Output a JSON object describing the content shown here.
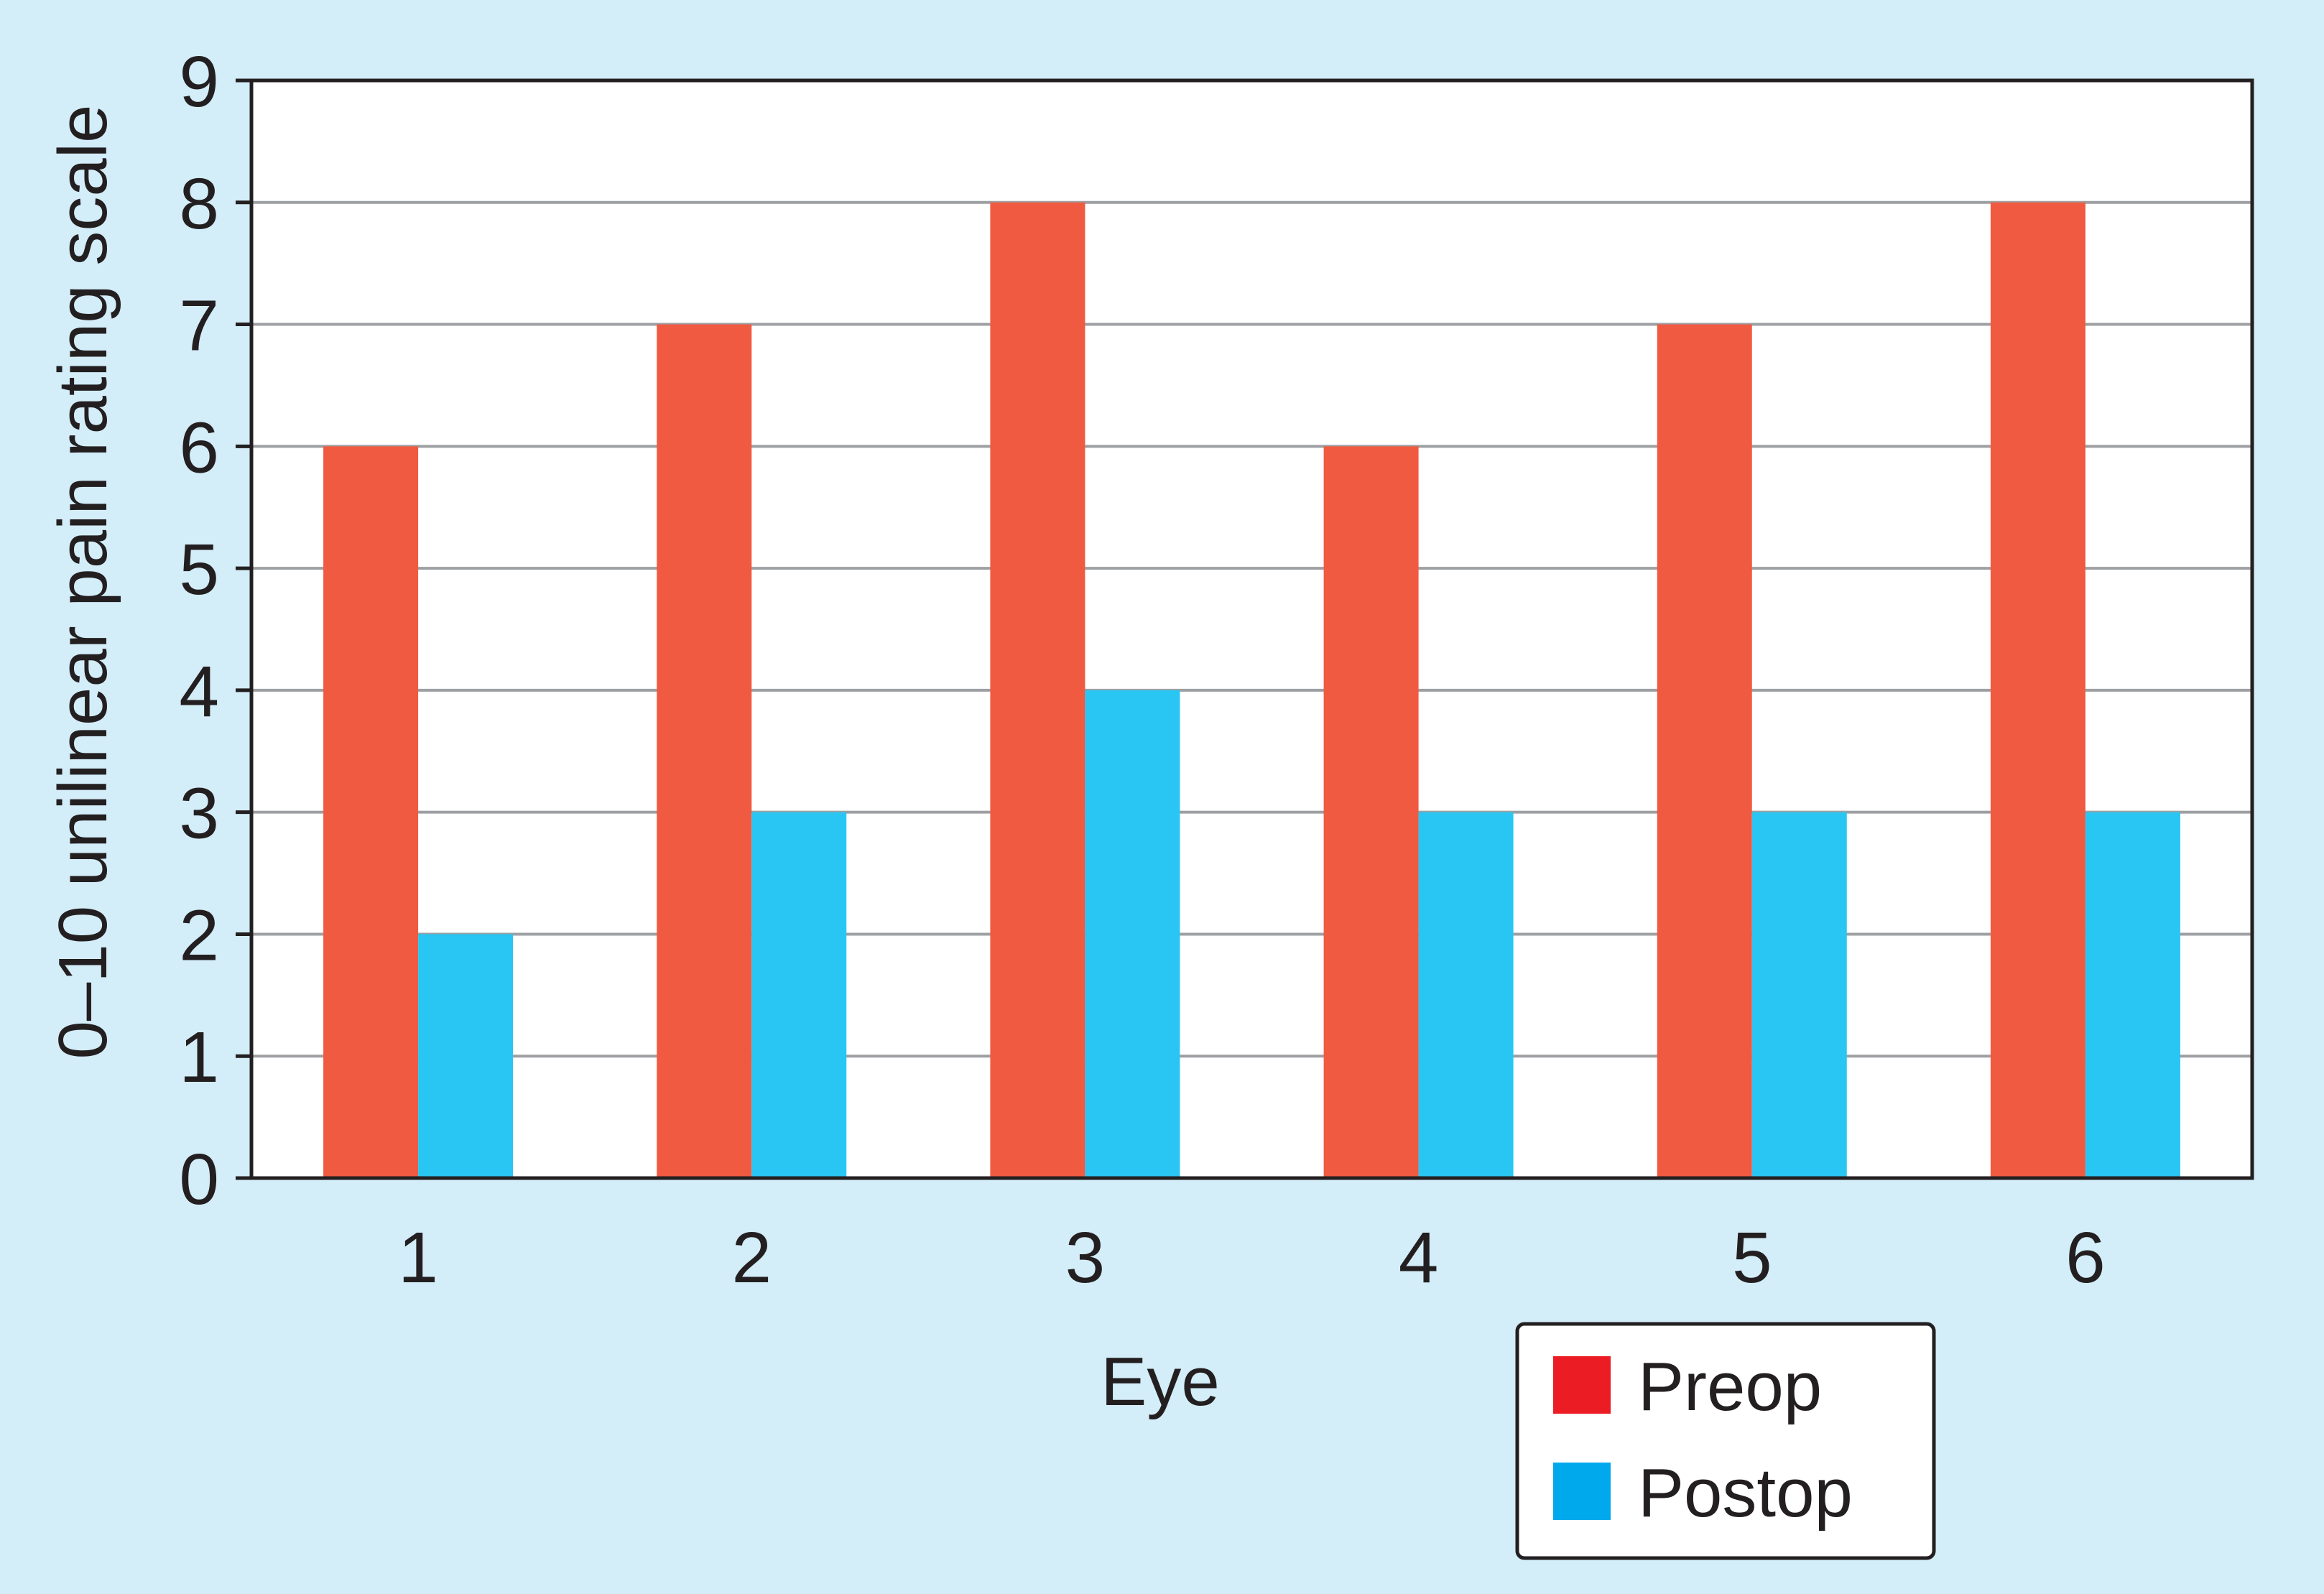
{
  "chart_data": {
    "type": "bar",
    "xlabel": "Eye",
    "ylabel": "0–10 unilinear pain rating scale",
    "categories": [
      "1",
      "2",
      "3",
      "4",
      "5",
      "6"
    ],
    "series": [
      {
        "name": "Preop",
        "values": [
          6,
          7,
          8,
          6,
          7,
          8
        ],
        "color": "#f05a40",
        "legend_color": "#ec1c24"
      },
      {
        "name": "Postop",
        "values": [
          2,
          3,
          4,
          3,
          3,
          3
        ],
        "color": "#29c5f3",
        "legend_color": "#00a9ec"
      }
    ],
    "ylim": [
      0,
      9
    ],
    "yticks": [
      "0",
      "1",
      "2",
      "3",
      "4",
      "5",
      "6",
      "7",
      "8",
      "9"
    ],
    "grid": true,
    "legend_position": "bottom-right",
    "background_color": "#d3edf9",
    "plot_background_color": "#ffffff",
    "gridline_color": "#9d9fa2"
  }
}
